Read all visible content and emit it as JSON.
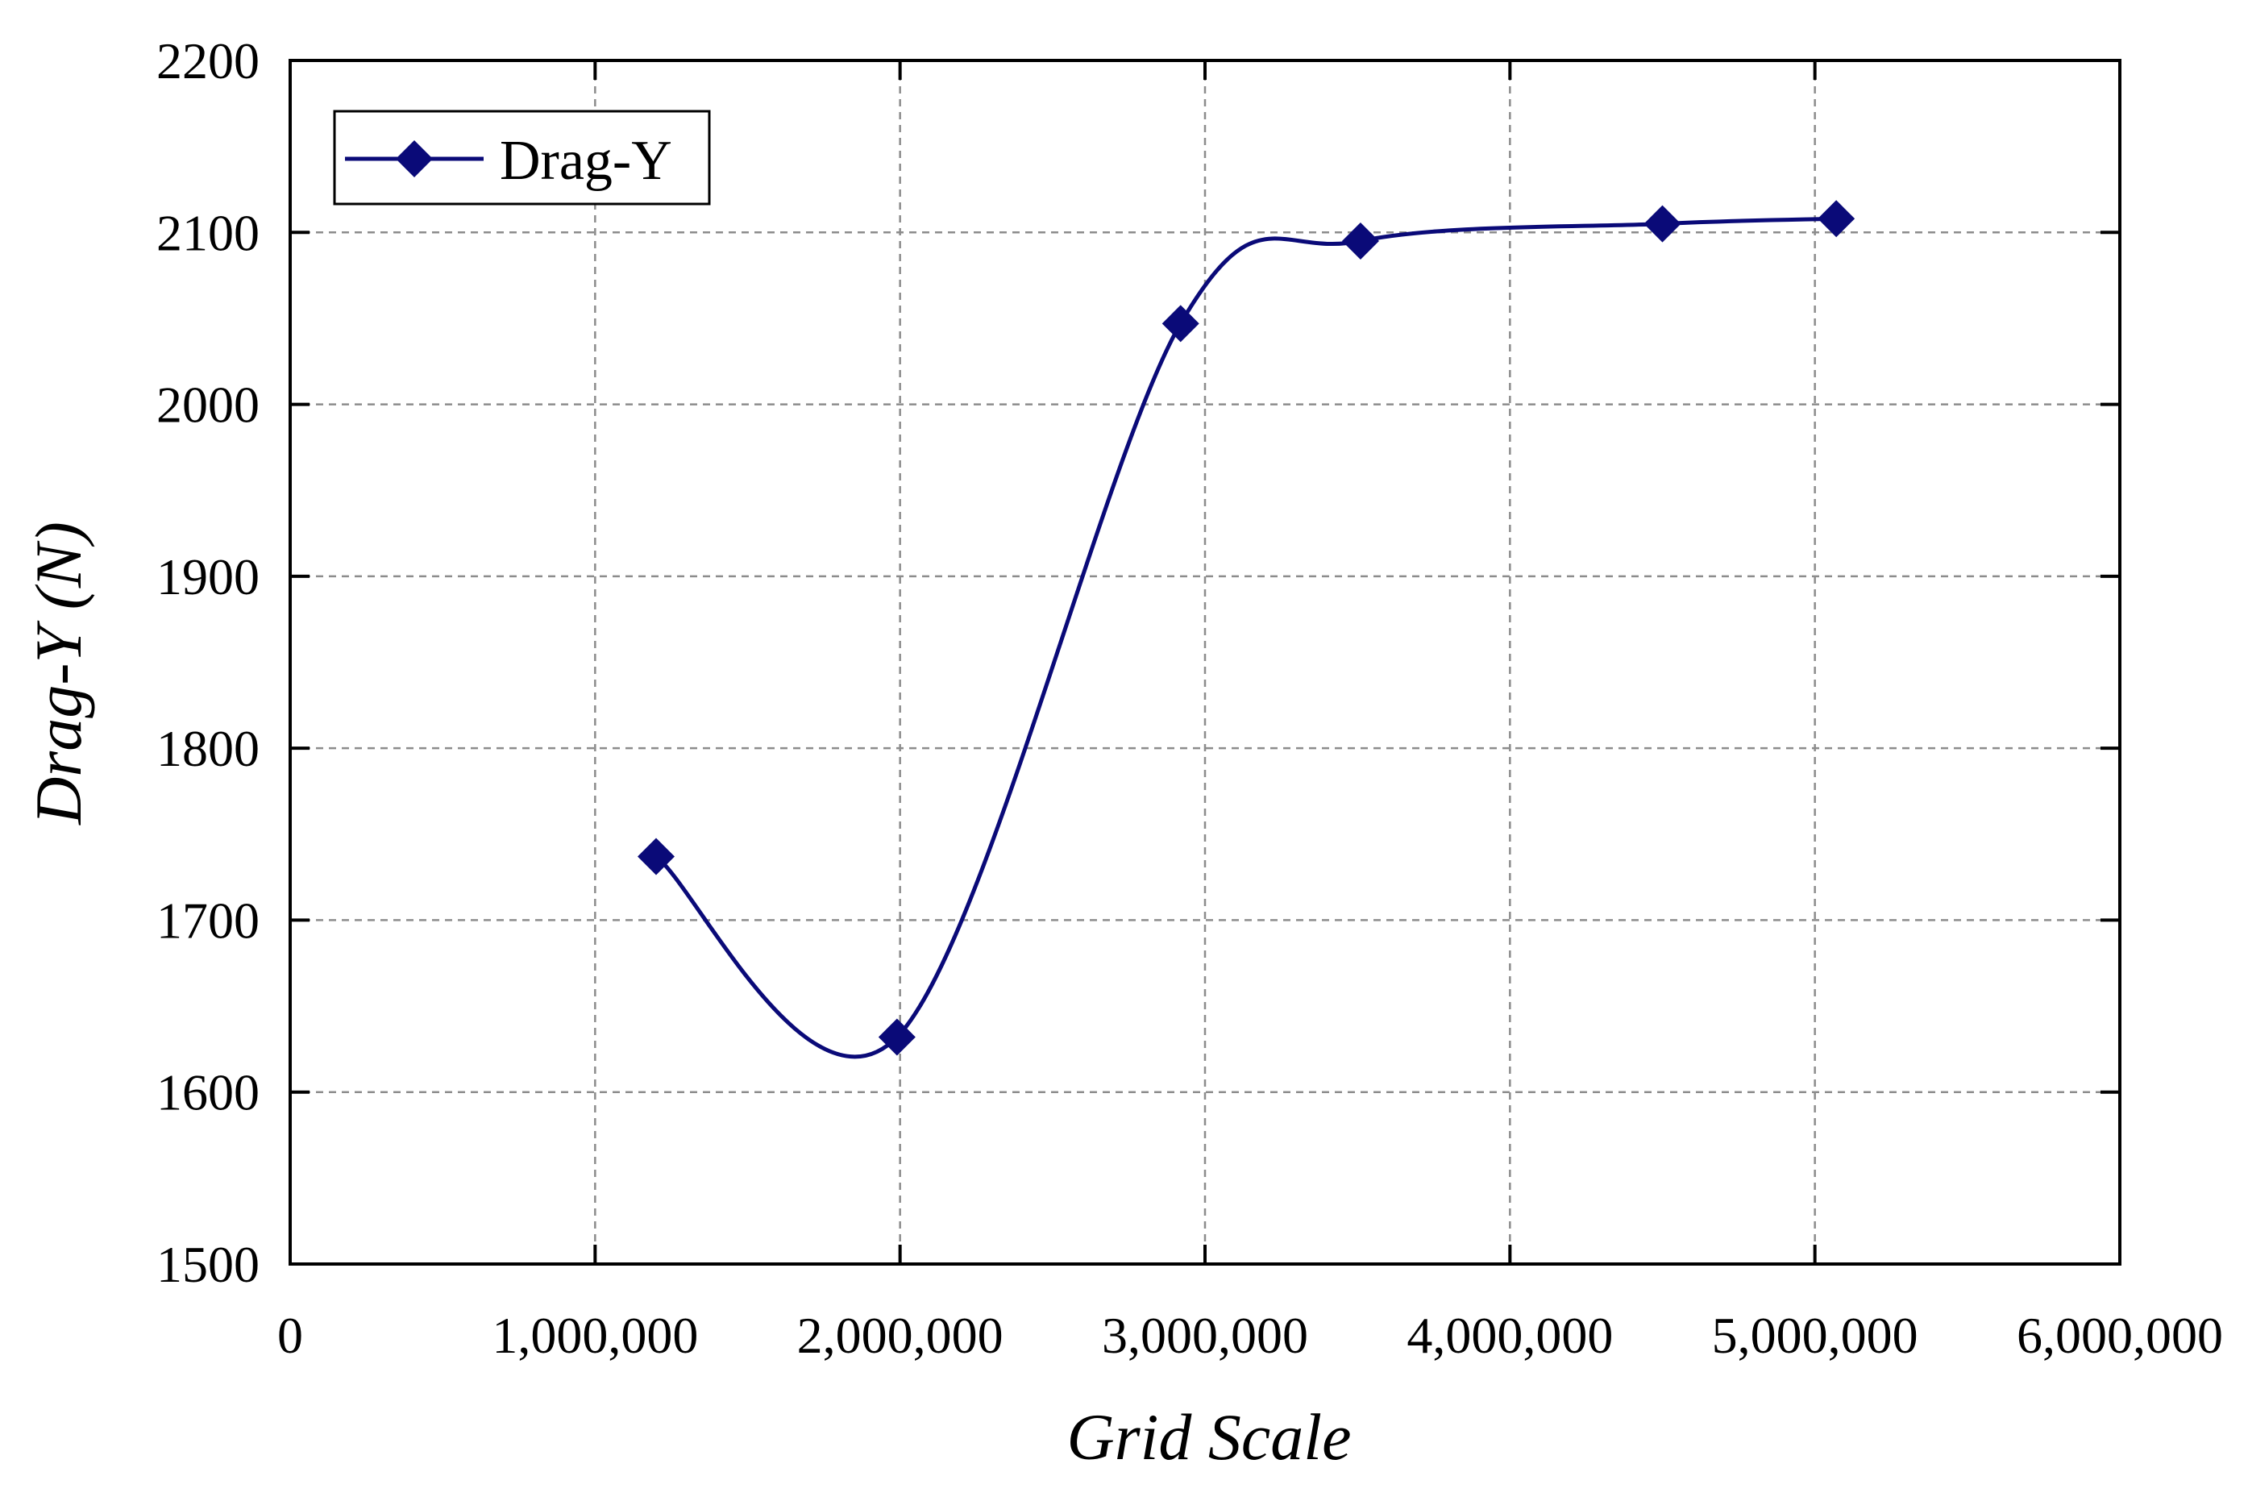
{
  "chart_data": {
    "type": "line",
    "title": "",
    "xlabel": "Grid Scale",
    "ylabel": "Drag-Y (N)",
    "xlim": [
      0,
      6000000
    ],
    "ylim": [
      1500,
      2200
    ],
    "grid": true,
    "legend_position": "top-left",
    "x_ticks": [
      0,
      1000000,
      2000000,
      3000000,
      4000000,
      5000000,
      6000000
    ],
    "x_tick_labels": [
      "0",
      "1,000,000",
      "2,000,000",
      "3,000,000",
      "4,000,000",
      "5,000,000",
      "6,000,000"
    ],
    "y_ticks": [
      1500,
      1600,
      1700,
      1800,
      1900,
      2000,
      2100,
      2200
    ],
    "y_tick_labels": [
      "1500",
      "1600",
      "1700",
      "1800",
      "1900",
      "2000",
      "2100",
      "2200"
    ],
    "series": [
      {
        "name": "Drag-Y",
        "color": "#0a0a78",
        "marker": "diamond",
        "smooth": true,
        "x": [
          1200000,
          1990000,
          2920000,
          3510000,
          4500000,
          5070000
        ],
        "y": [
          1737,
          1632,
          2047,
          2095,
          2105,
          2108
        ]
      }
    ]
  }
}
